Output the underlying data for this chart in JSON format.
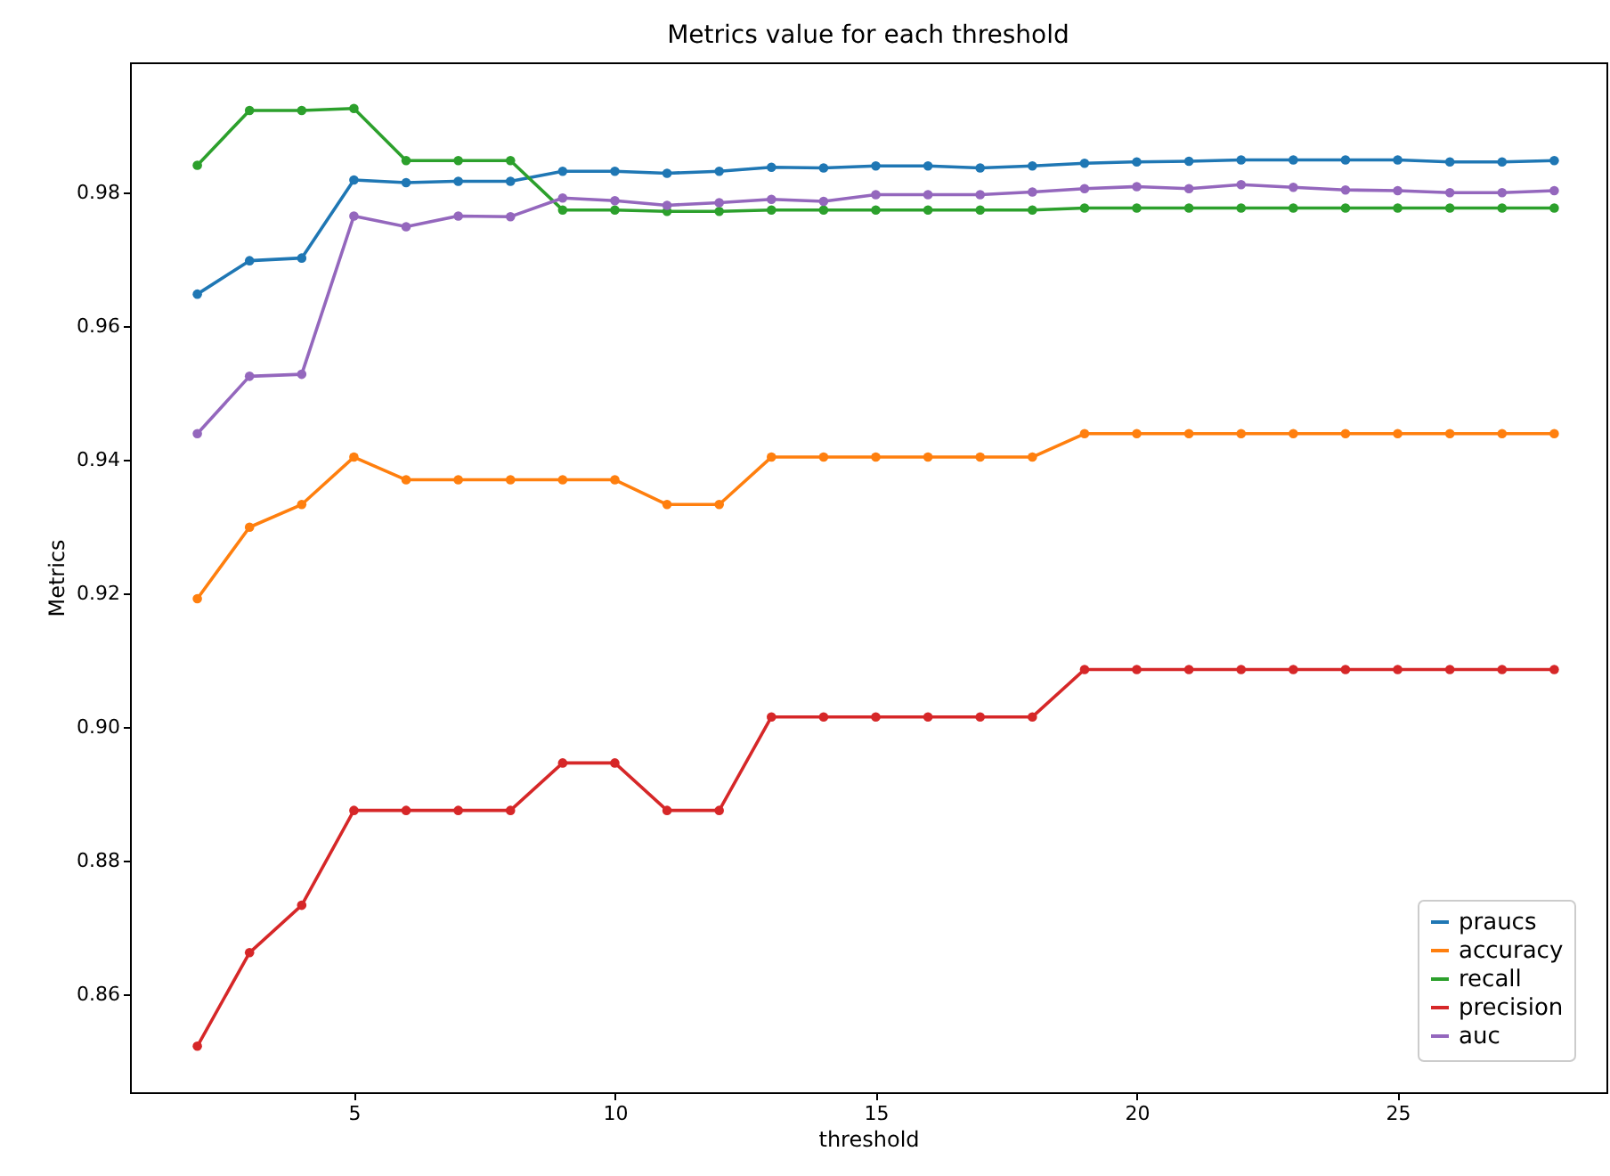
{
  "chart_data": {
    "type": "line",
    "title": "Metrics value for each threshold",
    "xlabel": "threshold",
    "ylabel": "Metrics",
    "x": [
      2,
      3,
      4,
      5,
      6,
      7,
      8,
      9,
      10,
      11,
      12,
      13,
      14,
      15,
      16,
      17,
      18,
      19,
      20,
      21,
      22,
      23,
      24,
      25,
      26,
      27,
      28
    ],
    "series": [
      {
        "name": "praucs",
        "color": "#1f77b4",
        "values": [
          0.9648,
          0.9698,
          0.9702,
          0.9819,
          0.9815,
          0.9817,
          0.9817,
          0.9832,
          0.9832,
          0.9829,
          0.9832,
          0.9838,
          0.9837,
          0.984,
          0.984,
          0.9837,
          0.984,
          0.9844,
          0.9846,
          0.9847,
          0.9849,
          0.9849,
          0.9849,
          0.9849,
          0.9846,
          0.9846,
          0.9848
        ]
      },
      {
        "name": "accuracy",
        "color": "#ff7f0e",
        "values": [
          0.9192,
          0.9299,
          0.9333,
          0.9404,
          0.937,
          0.937,
          0.937,
          0.937,
          0.937,
          0.9333,
          0.9333,
          0.9404,
          0.9404,
          0.9404,
          0.9404,
          0.9404,
          0.9404,
          0.9439,
          0.9439,
          0.9439,
          0.9439,
          0.9439,
          0.9439,
          0.9439,
          0.9439,
          0.9439,
          0.9439
        ]
      },
      {
        "name": "recall",
        "color": "#2ca02c",
        "values": [
          0.9841,
          0.9923,
          0.9923,
          0.9926,
          0.9848,
          0.9848,
          0.9848,
          0.9774,
          0.9774,
          0.9772,
          0.9772,
          0.9774,
          0.9774,
          0.9774,
          0.9774,
          0.9774,
          0.9774,
          0.9777,
          0.9777,
          0.9777,
          0.9777,
          0.9777,
          0.9777,
          0.9777,
          0.9777,
          0.9777,
          0.9777
        ]
      },
      {
        "name": "precision",
        "color": "#d62728",
        "values": [
          0.8522,
          0.8662,
          0.8733,
          0.8875,
          0.8875,
          0.8875,
          0.8875,
          0.8946,
          0.8946,
          0.8875,
          0.8875,
          0.9015,
          0.9015,
          0.9015,
          0.9015,
          0.9015,
          0.9015,
          0.9086,
          0.9086,
          0.9086,
          0.9086,
          0.9086,
          0.9086,
          0.9086,
          0.9086,
          0.9086,
          0.9086
        ]
      },
      {
        "name": "auc",
        "color": "#9467bd",
        "values": [
          0.9439,
          0.9525,
          0.9528,
          0.9765,
          0.9749,
          0.9765,
          0.9764,
          0.9792,
          0.9788,
          0.9781,
          0.9785,
          0.979,
          0.9787,
          0.9797,
          0.9797,
          0.9797,
          0.9801,
          0.9806,
          0.9809,
          0.9806,
          0.9812,
          0.9808,
          0.9804,
          0.9803,
          0.98,
          0.98,
          0.9803
        ]
      }
    ],
    "xlim": [
      0.71,
      29.0
    ],
    "xticks": [
      5,
      10,
      15,
      20,
      25
    ],
    "ylim": [
      0.8453,
      0.9995
    ],
    "yticks": [
      0.86,
      0.88,
      {
        "value": 0.9,
        "label": "0.90"
      },
      0.92,
      0.94,
      0.96,
      0.98
    ],
    "grid": false,
    "legend": "bottom right",
    "marker": "circle",
    "line_style": "solid"
  }
}
